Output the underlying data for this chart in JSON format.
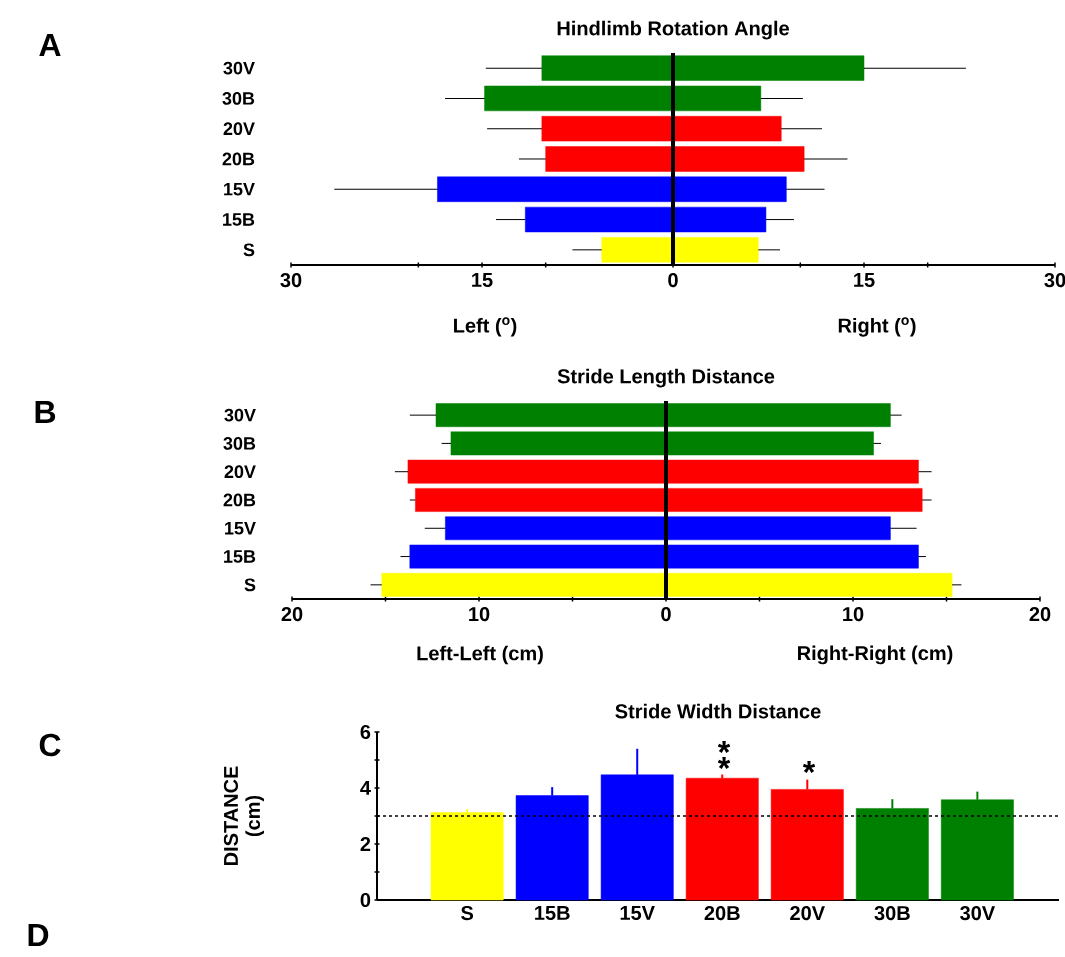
{
  "chart_data": [
    {
      "type": "bar",
      "orientation": "horizontal",
      "stacked": true,
      "title": "Hindlimb Rotation Angle",
      "categories": [
        "30V",
        "30B",
        "20V",
        "20B",
        "15V",
        "15B",
        "S"
      ],
      "series": [
        {
          "values": [
            -10.3,
            -14.8,
            -10.3,
            -10.0,
            -18.5,
            -11.6,
            -5.6
          ],
          "errors": [
            [
              -14.7,
              -10.3
            ],
            [
              -17.9,
              -14.8
            ],
            [
              -14.6,
              -10.3
            ],
            [
              -12.1,
              -10.0
            ],
            [
              -26.6,
              -18.5
            ],
            [
              -13.9,
              -11.6
            ],
            [
              -7.9,
              -5.6
            ]
          ],
          "colors": [
            "#008000",
            "#008000",
            "#ff0000",
            "#ff0000",
            "#0000ff",
            "#0000ff",
            "#ffff00"
          ]
        },
        {
          "values": [
            15.0,
            6.9,
            8.5,
            10.3,
            8.9,
            7.3,
            6.7
          ],
          "errors": [
            [
              15.0,
              23.0
            ],
            [
              6.9,
              10.2
            ],
            [
              8.5,
              11.7
            ],
            [
              10.3,
              13.7
            ],
            [
              8.9,
              11.9
            ],
            [
              7.3,
              9.5
            ],
            [
              6.7,
              8.4
            ]
          ],
          "colors": [
            "#008000",
            "#008000",
            "#ff0000",
            "#ff0000",
            "#0000ff",
            "#0000ff",
            "#ffff00"
          ]
        }
      ],
      "xlim": [
        -30,
        30
      ],
      "xticks": [
        {
          "value": -30,
          "label": "30"
        },
        {
          "value": -20,
          "label": null
        },
        {
          "value": -15,
          "label": "15"
        },
        {
          "value": -10,
          "label": null
        },
        0,
        {
          "value": 10,
          "label": null
        },
        15,
        {
          "value": 20,
          "label": null
        },
        30
      ],
      "annotations": [
        "A",
        "Left ($^{o}$)",
        "Right ($^{o}$)"
      ]
    },
    {
      "type": "bar",
      "orientation": "horizontal",
      "stacked": true,
      "title": "Stride Length Distance",
      "categories": [
        "30V",
        "30B",
        "20V",
        "20B",
        "15V",
        "15B",
        "S"
      ],
      "series": [
        {
          "values": [
            -12.3,
            -11.5,
            -13.8,
            -13.4,
            -11.8,
            -13.7,
            -15.2
          ],
          "errors": [
            [
              -13.7,
              -12.3
            ],
            [
              -12.0,
              -11.5
            ],
            [
              -14.5,
              -13.8
            ],
            [
              -13.7,
              -13.4
            ],
            [
              -12.9,
              -11.8
            ],
            [
              -14.2,
              -13.7
            ],
            [
              -15.8,
              -15.2
            ]
          ],
          "colors": [
            "#008000",
            "#008000",
            "#ff0000",
            "#ff0000",
            "#0000ff",
            "#0000ff",
            "#ffff00"
          ]
        },
        {
          "values": [
            12.0,
            11.1,
            13.5,
            13.7,
            12.0,
            13.5,
            15.3
          ],
          "errors": [
            [
              12.0,
              12.6
            ],
            [
              11.1,
              11.5
            ],
            [
              13.5,
              14.2
            ],
            [
              13.7,
              14.2
            ],
            [
              12.0,
              13.4
            ],
            [
              13.5,
              13.9
            ],
            [
              15.3,
              15.8
            ]
          ],
          "colors": [
            "#008000",
            "#008000",
            "#ff0000",
            "#ff0000",
            "#0000ff",
            "#0000ff",
            "#ffff00"
          ]
        }
      ],
      "xlim": [
        -20,
        20
      ],
      "xticks": [
        {
          "value": -20,
          "label": "20"
        },
        {
          "value": -15,
          "label": null
        },
        {
          "value": -10,
          "label": "10"
        },
        {
          "value": -5,
          "label": null
        },
        0,
        {
          "value": 5,
          "label": null
        },
        10,
        {
          "value": 15,
          "label": null
        },
        20
      ],
      "annotations": [
        "B",
        "Left-Left (cm)",
        "Right-Right (cm)"
      ]
    },
    {
      "type": "bar",
      "title": "Stride Width Distance",
      "ylabel": "DISTANCE (cm)",
      "categories": [
        "S",
        "15B",
        "15V",
        "20B",
        "20V",
        "30B",
        "30V"
      ],
      "values": [
        3.12,
        3.73,
        4.47,
        4.35,
        3.95,
        3.27,
        3.58
      ],
      "errors": [
        [
          3.12,
          3.24
        ],
        [
          3.73,
          4.03
        ],
        [
          4.47,
          5.4
        ],
        [
          4.35,
          4.48
        ],
        [
          3.95,
          4.3
        ],
        [
          3.27,
          3.6
        ],
        [
          3.58,
          3.87
        ]
      ],
      "colors": [
        "#ffff00",
        "#0000ff",
        "#0000ff",
        "#ff0000",
        "#ff0000",
        "#008000",
        "#008000"
      ],
      "ylim": [
        0,
        6
      ],
      "yticks": [
        0,
        {
          "value": 1,
          "label": null
        },
        2,
        {
          "value": 3,
          "label": null
        },
        4,
        {
          "value": 5,
          "label": null
        },
        6
      ],
      "ref_lines": [
        {
          "axis": "y",
          "value": 3,
          "line_style": "dashed"
        }
      ],
      "annotations": [
        "C",
        "D",
        "*",
        "*",
        "*"
      ]
    }
  ]
}
